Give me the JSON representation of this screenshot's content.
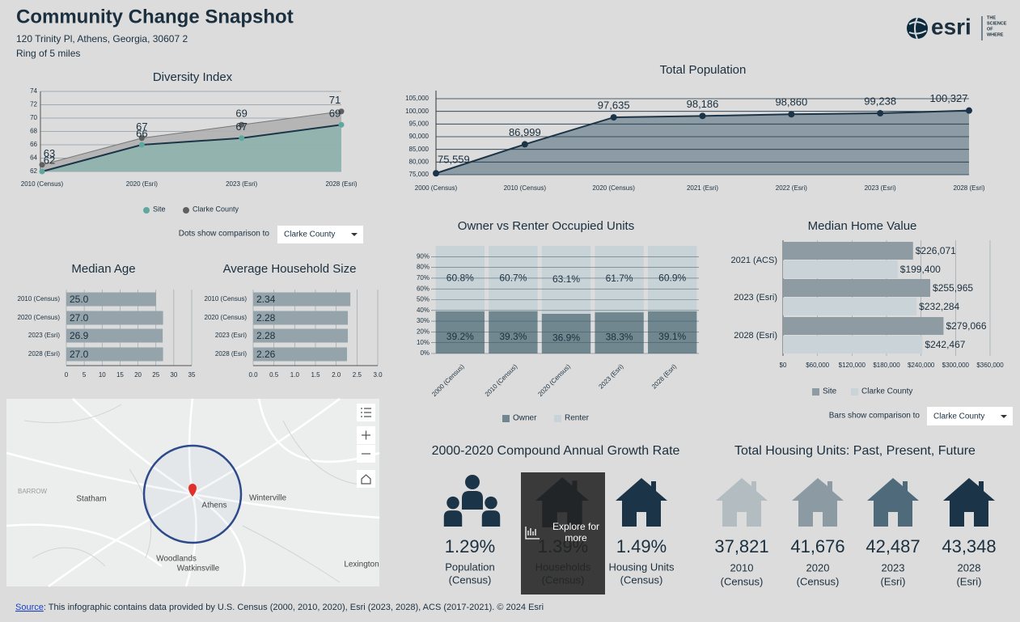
{
  "header": {
    "title": "Community Change Snapshot",
    "address": "120 Trinity Pl, Athens, Georgia, 30607 2",
    "ring": "Ring of 5 miles"
  },
  "logo": {
    "wordmark": "esri",
    "tagline": [
      "THE",
      "SCIENCE",
      "OF",
      "WHERE"
    ]
  },
  "chart_data": [
    {
      "type": "line",
      "title": "Diversity Index",
      "categories": [
        "2010 (Census)",
        "2020 (Esri)",
        "2023 (Esri)",
        "2028 (Esri)"
      ],
      "series": [
        {
          "name": "Site",
          "color": "#5fa8a0",
          "values": [
            62,
            66,
            67,
            69
          ]
        },
        {
          "name": "Clarke County",
          "color": "#5f5f5f",
          "values": [
            63,
            67,
            69,
            71
          ]
        }
      ],
      "ylim": [
        62,
        74
      ],
      "yticks": [
        62,
        64,
        66,
        68,
        70,
        72,
        74
      ],
      "grid": true,
      "comparison_label": "Dots show comparison to",
      "comparison_value": "Clarke County"
    },
    {
      "type": "area",
      "title": "Total Population",
      "categories": [
        "2000 (Census)",
        "2010 (Census)",
        "2020 (Census)",
        "2021 (Esri)",
        "2022 (Esri)",
        "2023 (Esri)",
        "2028 (Esri)"
      ],
      "values": [
        75559,
        86999,
        97635,
        98186,
        98860,
        99238,
        100327
      ],
      "value_labels": [
        "75,559",
        "86,999",
        "97,635",
        "98,186",
        "98,860",
        "99,238",
        "100,327"
      ],
      "color": "#8d9ca4",
      "ylim": [
        75000,
        105000
      ],
      "yticks": [
        {
          "value": 75000,
          "label": "75,000"
        },
        {
          "value": 80000,
          "label": "80,000"
        },
        {
          "value": 85000,
          "label": "85,000"
        },
        {
          "value": 90000,
          "label": "90,000"
        },
        {
          "value": 95000,
          "label": "95,000"
        },
        {
          "value": 100000,
          "label": "100,000"
        },
        {
          "value": 105000,
          "label": "105,000"
        }
      ],
      "grid": true
    },
    {
      "type": "hbar",
      "title": "Median Age",
      "categories": [
        "2010 (Census)",
        "2020 (Census)",
        "2023 (Esri)",
        "2028 (Esri)"
      ],
      "values": [
        25.0,
        27.0,
        26.9,
        27.0
      ],
      "value_labels": [
        "25.0",
        "27.0",
        "26.9",
        "27.0"
      ],
      "color": "#95a3ab",
      "xlim": [
        0,
        35
      ],
      "xticks": [
        0,
        5,
        10,
        15,
        20,
        25,
        30,
        35
      ],
      "grid": true
    },
    {
      "type": "hbar",
      "title": "Average Household Size",
      "categories": [
        "2010 (Census)",
        "2020 (Census)",
        "2023 (Esri)",
        "2028 (Esri)"
      ],
      "values": [
        2.34,
        2.28,
        2.28,
        2.26
      ],
      "color": "#95a3ab",
      "xlim": [
        0,
        3
      ],
      "xticks": [
        {
          "value": 0,
          "label": "0.0"
        },
        0.5,
        {
          "value": 1,
          "label": "1.0"
        },
        1.5,
        {
          "value": 2,
          "label": "2.0"
        },
        2.5,
        {
          "value": 3,
          "label": "3.0"
        }
      ],
      "grid": true
    },
    {
      "type": "stacked_bar",
      "title": "Owner vs Renter Occupied Units",
      "categories": [
        "2000 (Census)",
        "2010 (Census)",
        "2020 (Census)",
        "2023 (Esri)",
        "2028 (Esri)"
      ],
      "series": [
        {
          "name": "Owner",
          "color": "#71878f",
          "values": [
            39.2,
            39.3,
            36.9,
            38.3,
            39.1
          ],
          "value_labels": [
            "39.2%",
            "39.3%",
            "36.9%",
            "38.3%",
            "39.1%"
          ]
        },
        {
          "name": "Renter",
          "color": "#c8d3d8",
          "values": [
            60.8,
            60.7,
            63.1,
            61.7,
            60.9
          ],
          "value_labels": [
            "60.8%",
            "60.7%",
            "63.1%",
            "61.7%",
            "60.9%"
          ]
        }
      ],
      "ylim": [
        0,
        100
      ],
      "yticks": [
        {
          "value": 0,
          "label": "0%"
        },
        {
          "value": 10,
          "label": "10%"
        },
        {
          "value": 20,
          "label": "20%"
        },
        {
          "value": 30,
          "label": "30%"
        },
        {
          "value": 40,
          "label": "40%"
        },
        {
          "value": 50,
          "label": "50%"
        },
        {
          "value": 60,
          "label": "60%"
        },
        {
          "value": 70,
          "label": "70%"
        },
        {
          "value": 80,
          "label": "80%"
        },
        {
          "value": 90,
          "label": "90%"
        }
      ],
      "grid": true
    },
    {
      "type": "grouped_hbar",
      "title": "Median Home Value",
      "categories": [
        "2021 (ACS)",
        "2023 (Esri)",
        "2028 (Esri)"
      ],
      "series": [
        {
          "name": "Site",
          "color": "#8e9ba3",
          "values": [
            226071,
            255965,
            279066
          ],
          "value_labels": [
            "$226,071",
            "$255,965",
            "$279,066"
          ]
        },
        {
          "name": "Clarke County",
          "color": "#c9d3d8",
          "values": [
            199400,
            232284,
            242467
          ],
          "value_labels": [
            "$199,400",
            "$232,284",
            "$242,467"
          ]
        }
      ],
      "xlim": [
        0,
        360000
      ],
      "xticks": [
        {
          "value": 0,
          "label": "$0"
        },
        {
          "value": 60000,
          "label": "$60,000"
        },
        {
          "value": 120000,
          "label": "$120,000"
        },
        {
          "value": 180000,
          "label": "$180,000"
        },
        {
          "value": 240000,
          "label": "$240,000"
        },
        {
          "value": 300000,
          "label": "$300,000"
        },
        {
          "value": 360000,
          "label": "$360,000"
        }
      ],
      "grid": true,
      "comparison_label": "Bars show comparison to",
      "comparison_value": "Clarke County"
    }
  ],
  "map": {
    "labels": [
      "BARROW",
      "Statham",
      "Athens",
      "Winterville",
      "Woodlands",
      "Watkinsville",
      "Lexington"
    ]
  },
  "growth": {
    "title": "2000-2020 Compound Annual Growth Rate",
    "items": [
      {
        "value": "1.29%",
        "label": "Population",
        "sub": "(Census)"
      },
      {
        "value": "1.39%",
        "label": "Households",
        "sub": "(Census)"
      },
      {
        "value": "1.49%",
        "label": "Housing Units",
        "sub": "(Census)"
      }
    ],
    "overlay": [
      "Explore for",
      "more"
    ]
  },
  "housing": {
    "title": "Total Housing Units: Past, Present, Future",
    "items": [
      {
        "value": "37,821",
        "label": "2010",
        "sub": "(Census)"
      },
      {
        "value": "41,676",
        "label": "2020",
        "sub": "(Census)"
      },
      {
        "value": "42,487",
        "label": "2023",
        "sub": "(Esri)"
      },
      {
        "value": "43,348",
        "label": "2028",
        "sub": "(Esri)"
      }
    ]
  },
  "footer": {
    "link": "Source",
    "text": ": This infographic contains data provided by U.S. Census (2000, 2010, 2020), Esri (2023, 2028), ACS (2017-2021). © 2024 Esri"
  }
}
